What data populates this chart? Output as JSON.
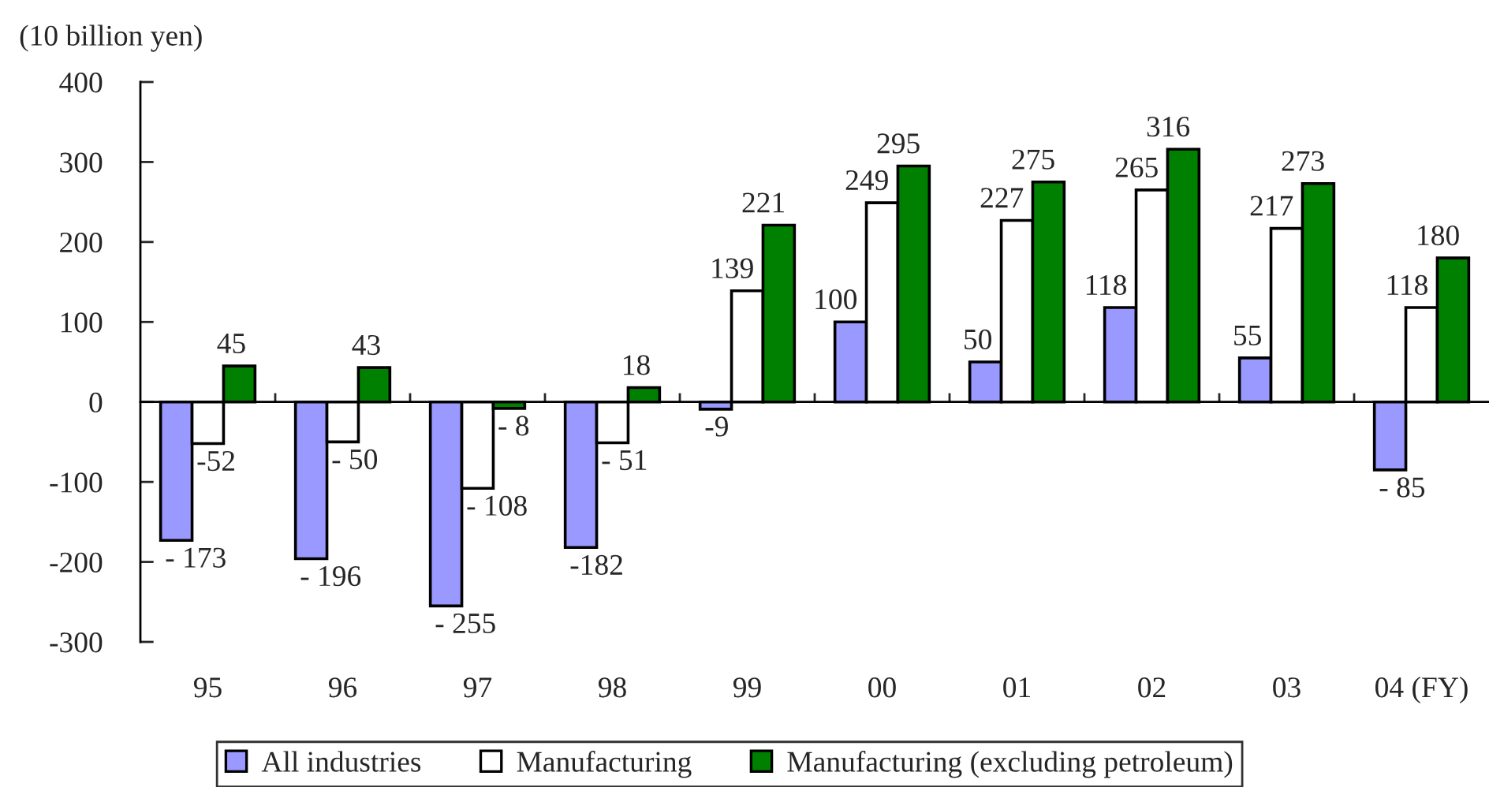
{
  "chart_data": {
    "type": "bar",
    "ylabel": "(10 billion yen)",
    "categories": [
      "95",
      "96",
      "97",
      "98",
      "99",
      "00",
      "01",
      "02",
      "03",
      "04 (FY)"
    ],
    "series": [
      {
        "name": "All industries",
        "color": "#9999ff",
        "values": [
          -173,
          -196,
          -255,
          -182,
          -9,
          100,
          50,
          118,
          55,
          -85
        ],
        "value_labels": [
          "- 173",
          "- 196",
          "- 255",
          "-182",
          "-9",
          "100",
          "50",
          "118",
          "55",
          "- 85"
        ]
      },
      {
        "name": "Manufacturing",
        "color": "#ffffff",
        "values": [
          -52,
          -50,
          -108,
          -51,
          139,
          249,
          227,
          265,
          217,
          118
        ],
        "value_labels": [
          "-52",
          "- 50",
          "- 108",
          "- 51",
          "139",
          "249",
          "227",
          "265",
          "217",
          "118"
        ]
      },
      {
        "name": "Manufacturing (excluding petroleum)",
        "color": "#008000",
        "values": [
          45,
          43,
          -8,
          18,
          221,
          295,
          275,
          316,
          273,
          180
        ],
        "value_labels": [
          "45",
          "43",
          "- 8",
          "18",
          "221",
          "295",
          "275",
          "316",
          "273",
          "180"
        ]
      }
    ],
    "ylim": [
      -300,
      400
    ],
    "yticks": [
      -300,
      -200,
      -100,
      0,
      100,
      200,
      300,
      400
    ],
    "legend": "bottom"
  }
}
